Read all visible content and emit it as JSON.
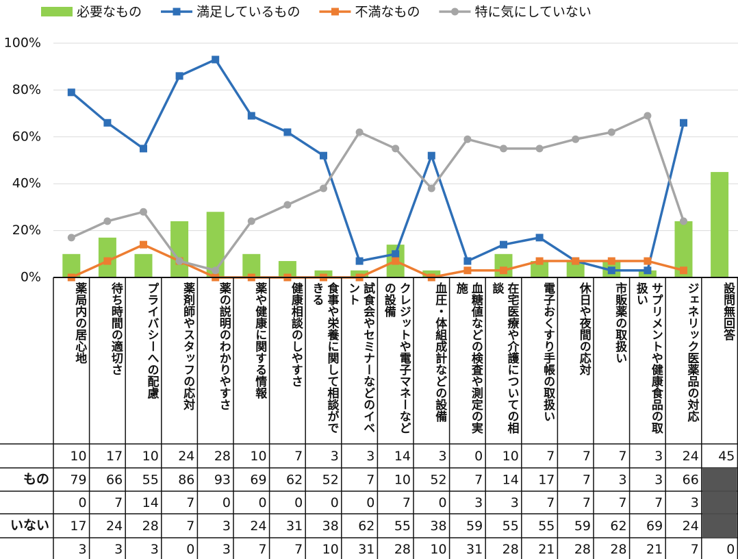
{
  "chart_data": {
    "type": "bar-line",
    "categories": [
      "薬局内の居心地",
      "待ち時間の適切さ",
      "プライバシーへの配慮",
      "薬剤師やスタッフの応対",
      "薬の説明のわかりやすさ",
      "薬や健康に関する情報",
      "健康相談のしやすさ",
      "食事や栄養に関して相談ができる",
      "試食会やセミナーなどのイベント",
      "クレジットや電子マネーなどの設備",
      "血圧・体組成計などの設備",
      "血糖値などの検査や測定の実施",
      "在宅医療や介護についての相談",
      "電子おくすり手帳の取扱い",
      "休日や夜間の応対",
      "市販薬の取扱い",
      "サプリメントや健康食品の取扱い",
      "ジェネリック医薬品の対応",
      "設問無回答"
    ],
    "series": [
      {
        "name": "必要なもの",
        "color": "#92d050",
        "kind": "bar",
        "values": [
          10,
          17,
          10,
          24,
          28,
          10,
          7,
          3,
          3,
          14,
          3,
          0,
          10,
          7,
          7,
          7,
          3,
          24,
          45
        ]
      },
      {
        "name": "満足しているもの",
        "color": "#2e6fb7",
        "kind": "line",
        "marker": "square",
        "values": [
          79,
          66,
          55,
          86,
          93,
          69,
          62,
          52,
          7,
          10,
          52,
          7,
          14,
          17,
          7,
          3,
          3,
          66,
          null
        ]
      },
      {
        "name": "不満なもの",
        "color": "#ed7d31",
        "kind": "line",
        "marker": "square",
        "values": [
          0,
          7,
          14,
          7,
          0,
          0,
          0,
          0,
          0,
          7,
          0,
          3,
          3,
          7,
          7,
          7,
          7,
          3,
          null
        ]
      },
      {
        "name": "特に気にしていない",
        "color": "#a5a5a5",
        "kind": "line",
        "marker": "circle",
        "values": [
          17,
          24,
          28,
          7,
          3,
          24,
          31,
          38,
          62,
          55,
          38,
          59,
          55,
          55,
          59,
          62,
          69,
          24,
          null
        ]
      }
    ],
    "extra_row": [
      3,
      3,
      3,
      0,
      3,
      7,
      7,
      10,
      31,
      28,
      10,
      31,
      28,
      21,
      28,
      28,
      21,
      7,
      0
    ],
    "row_labels": [
      null,
      "もの",
      null,
      "いない",
      null
    ],
    "ylim": [
      0,
      100
    ],
    "yticks": [
      {
        "value": 0,
        "label": "0%"
      },
      {
        "value": 20,
        "label": "20%"
      },
      {
        "value": 40,
        "label": "40%"
      },
      {
        "value": 60,
        "label": "60%"
      },
      {
        "value": 80,
        "label": "80%"
      },
      {
        "value": 100,
        "label": "100%"
      }
    ],
    "grid": true
  }
}
